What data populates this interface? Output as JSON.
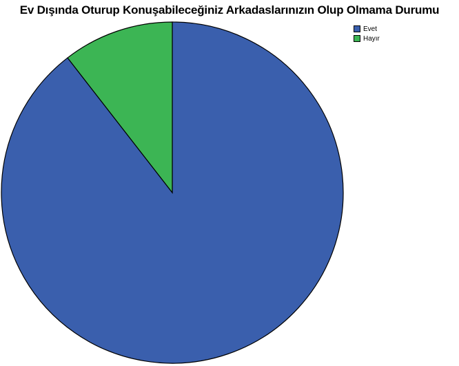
{
  "chart_data": {
    "type": "pie",
    "title": "Ev Dışında Oturup Konuşabileceğiniz Arkadaslarınızın Olup Olmama Durumu",
    "categories": [
      "Evet",
      "Hayır"
    ],
    "values": [
      89.5,
      10.5
    ],
    "colors": [
      "#3a5fad",
      "#3cb554"
    ],
    "legend_position": "top-right",
    "start_angle_deg": 0,
    "direction": "counterclockwise"
  }
}
